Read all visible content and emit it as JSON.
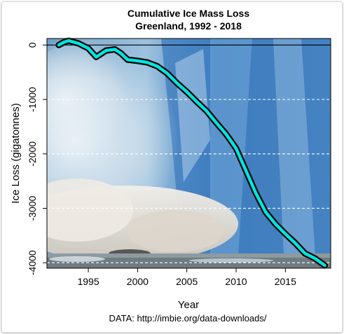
{
  "chart_data": {
    "type": "line",
    "title": "Cumulative Ice Mass Loss",
    "subtitle": "Greenland, 1992 - 2018",
    "xlabel": "Year",
    "ylabel": "Ice Loss (gigatonnes)",
    "xlim": [
      1990.8,
      2019.6
    ],
    "ylim": [
      -4100,
      120
    ],
    "x_ticks": [
      1995,
      2000,
      2005,
      2010,
      2015
    ],
    "y_ticks": [
      0,
      -1000,
      -2000,
      -3000,
      -4000
    ],
    "y_tick_labels": [
      "0",
      "-1000",
      "-2000",
      "-3000",
      "-4000"
    ],
    "grid": "horizontal dashed",
    "background": "photograph of a calving glacier",
    "line_color": "#00e5e0",
    "series": [
      {
        "x": [
          1992.0,
          1992.5,
          1993.0,
          1994.0,
          1995.0,
          1995.8,
          1996.8,
          1997.7,
          1998.3,
          1999.0,
          2000.0,
          2001.0,
          2002.0,
          2003.0,
          2004.0,
          2005.0,
          2006.0,
          2007.0,
          2008.0,
          2009.0,
          2010.0,
          2011.0,
          2012.0,
          2013.0,
          2014.0,
          2015.0,
          2016.0,
          2017.0,
          2018.0,
          2019.0
        ],
        "y": [
          0,
          50,
          80,
          30,
          -60,
          -220,
          -100,
          -80,
          -150,
          -270,
          -290,
          -320,
          -390,
          -520,
          -700,
          -860,
          -1040,
          -1210,
          -1430,
          -1640,
          -1900,
          -2310,
          -2720,
          -3070,
          -3290,
          -3470,
          -3640,
          -3830,
          -3920,
          -4050
        ]
      }
    ]
  },
  "source_note": "DATA: http://imbie.org/data-downloads/"
}
